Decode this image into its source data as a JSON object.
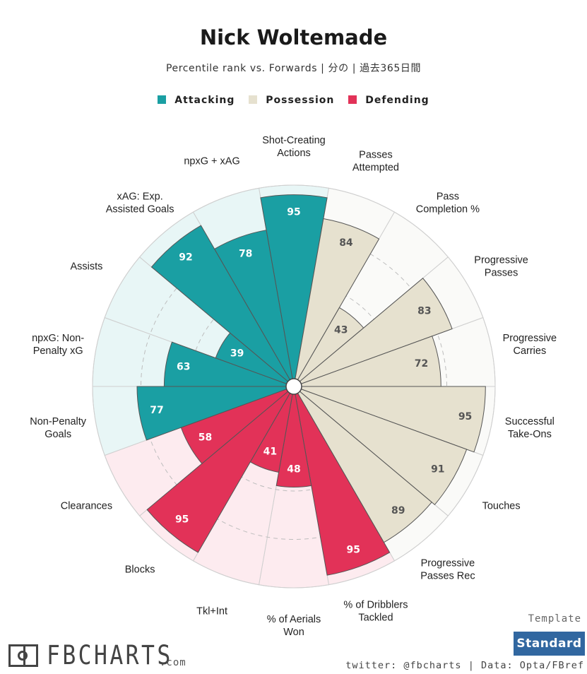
{
  "header": {
    "title": "Nick Woltemade",
    "subtitle": "Percentile rank vs. Forwards | 分の | 過去365日間"
  },
  "legend": [
    {
      "label": "Attacking",
      "color": "#1a9fa3"
    },
    {
      "label": "Possession",
      "color": "#e6e1cf"
    },
    {
      "label": "Defending",
      "color": "#e23258"
    }
  ],
  "colors": {
    "attacking": "#1a9fa3",
    "attacking_bg": "#e8f6f6",
    "possession": "#e6e1cf",
    "possession_bg": "#fafaf8",
    "defending": "#e23258",
    "defending_bg": "#fdebef",
    "brand": "#3167a0"
  },
  "chart_data": {
    "type": "polar-bar",
    "title": "Nick Woltemade",
    "subtitle": "Percentile rank vs. Forwards | 分の | 過去365日間",
    "rlim": [
      0,
      100
    ],
    "grid_circles": [
      25,
      50,
      75
    ],
    "categories": [
      {
        "label": "Shot-Creating\nActions",
        "value": 95,
        "group": "attacking"
      },
      {
        "label": "Passes\nAttempted",
        "value": 84,
        "group": "possession"
      },
      {
        "label": "Pass\nCompletion %",
        "value": 43,
        "group": "possession"
      },
      {
        "label": "Progressive\nPasses",
        "value": 83,
        "group": "possession"
      },
      {
        "label": "Progressive\nCarries",
        "value": 72,
        "group": "possession"
      },
      {
        "label": "Successful\nTake-Ons",
        "value": 95,
        "group": "possession"
      },
      {
        "label": "Touches",
        "value": 91,
        "group": "possession"
      },
      {
        "label": "Progressive\nPasses Rec",
        "value": 89,
        "group": "possession"
      },
      {
        "label": "% of Dribblers\nTackled",
        "value": 95,
        "group": "defending"
      },
      {
        "label": "% of Aerials\nWon",
        "value": 48,
        "group": "defending"
      },
      {
        "label": "Tkl+Int",
        "value": 41,
        "group": "defending"
      },
      {
        "label": "Blocks",
        "value": 95,
        "group": "defending"
      },
      {
        "label": "Clearances",
        "value": 58,
        "group": "defending"
      },
      {
        "label": "Non-Penalty\nGoals",
        "value": 77,
        "group": "attacking"
      },
      {
        "label": "npxG: Non-\nPenalty xG",
        "value": 63,
        "group": "attacking"
      },
      {
        "label": "Assists",
        "value": 39,
        "group": "attacking"
      },
      {
        "label": "xAG: Exp.\nAssisted Goals",
        "value": 92,
        "group": "attacking"
      },
      {
        "label": "npxG + xAG",
        "value": 78,
        "group": "attacking"
      }
    ]
  },
  "footer": {
    "template_label": "Template",
    "template_button": "Standard",
    "credit": "twitter: @fbcharts | Data: Opta/FBref",
    "logo_text": "FBCHARTS",
    "logo_suffix": ".com"
  }
}
